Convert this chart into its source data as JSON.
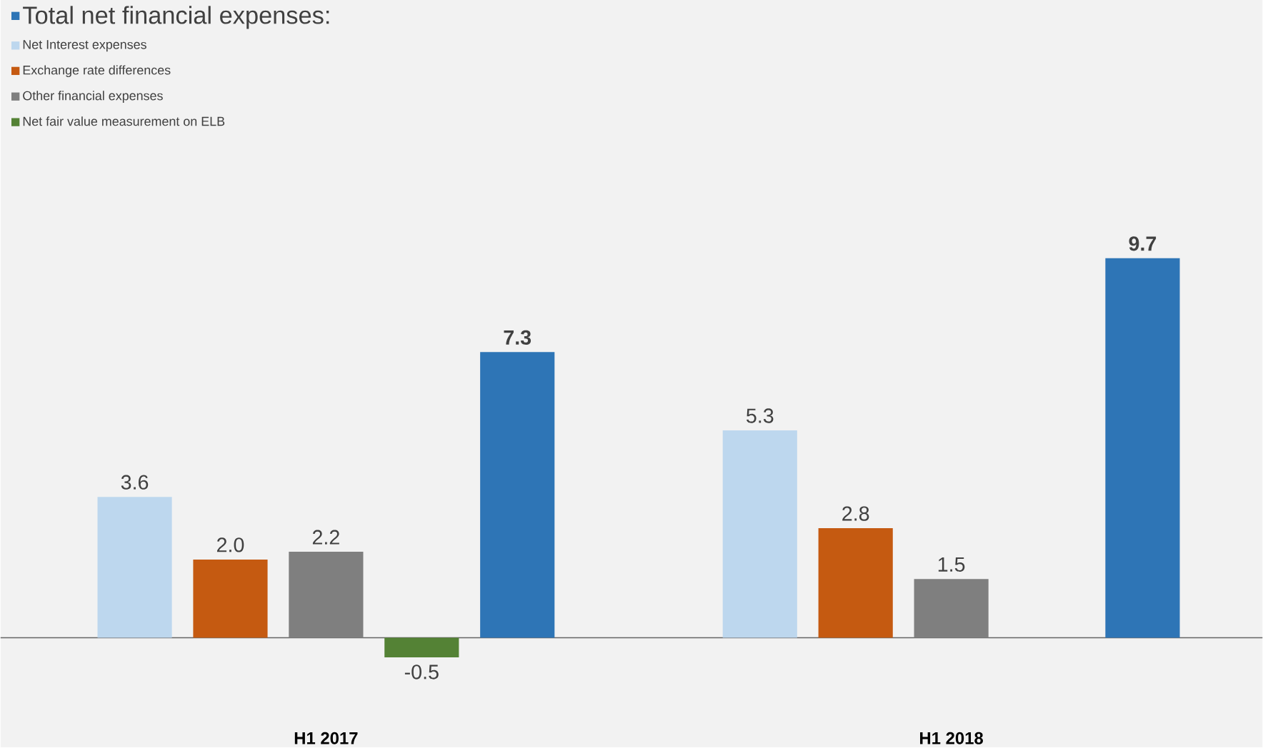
{
  "chart_data": {
    "type": "bar",
    "categories": [
      "H1 2017",
      "H1 2018"
    ],
    "series": [
      {
        "name": "Net Interest expenses",
        "color": "#bdd7ee",
        "values": [
          3.6,
          5.3
        ],
        "value_labels": [
          "3.6",
          "5.3"
        ]
      },
      {
        "name": "Exchange rate differences",
        "color": "#c55a11",
        "values": [
          2.0,
          2.8
        ],
        "value_labels": [
          "2.0",
          "2.8"
        ]
      },
      {
        "name": "Other financial expenses",
        "color": "#7f7f7f",
        "values": [
          2.2,
          1.5
        ],
        "value_labels": [
          "2.2",
          "1.5"
        ]
      },
      {
        "name": "Net fair value measurement on ELB",
        "color": "#548235",
        "values": [
          -0.5,
          null
        ],
        "value_labels": [
          "-0.5",
          null
        ]
      },
      {
        "name": "Total net financial expenses:",
        "color": "#2e75b6",
        "values": [
          7.3,
          9.7
        ],
        "value_labels": [
          "7.3",
          "9.7"
        ]
      }
    ],
    "ylim": [
      -2.8,
      16.3
    ],
    "tick_labels": "x",
    "legend": "top left"
  }
}
